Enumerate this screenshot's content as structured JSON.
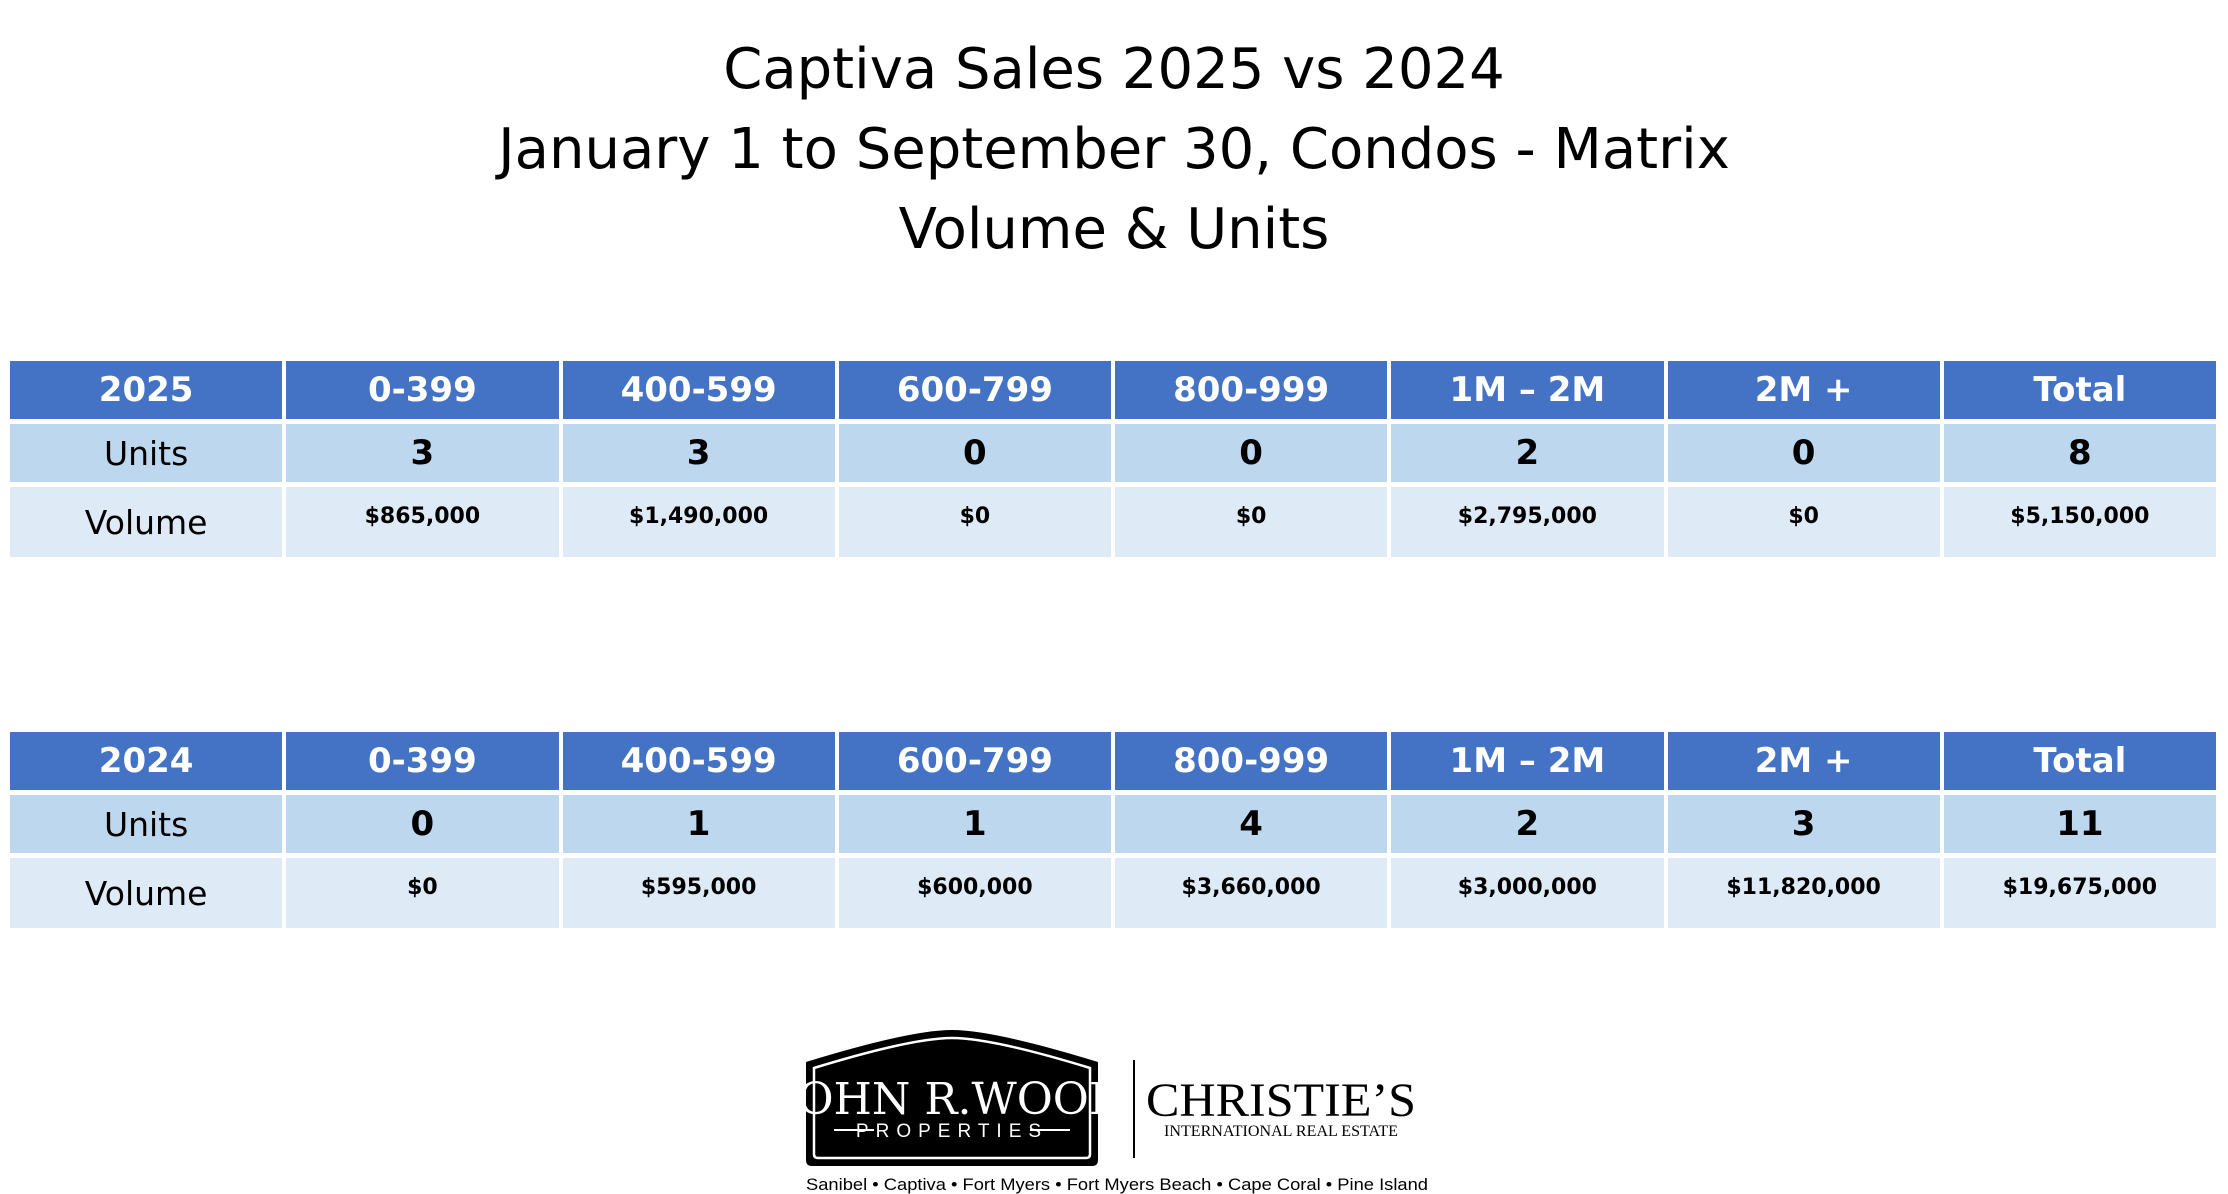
{
  "title": {
    "line1": "Captiva Sales  2025 vs 2024",
    "line2": "January 1 to September 30, Condos - Matrix",
    "line3": "Volume & Units"
  },
  "columns": [
    "0-399",
    "400-599",
    "600-799",
    "800-999",
    "1M – 2M",
    "2M +",
    "Total"
  ],
  "row_labels": {
    "units": "Units",
    "volume": "Volume"
  },
  "tables": [
    {
      "year": "2025",
      "units": [
        "3",
        "3",
        "0",
        "0",
        "2",
        "0",
        "8"
      ],
      "volume": [
        "$865,000",
        "$1,490,000",
        "$0",
        "$0",
        "$2,795,000",
        "$0",
        "$5,150,000"
      ]
    },
    {
      "year": "2024",
      "units": [
        "0",
        "1",
        "1",
        "4",
        "2",
        "3",
        "11"
      ],
      "volume": [
        "$0",
        "$595,000",
        "$600,000",
        "$3,660,000",
        "$3,000,000",
        "$11,820,000",
        "$19,675,000"
      ]
    }
  ],
  "footer": {
    "logo_name": "JOHN R.WOOD",
    "logo_sub": "PROPERTIES",
    "partner_name": "CHRISTIE’S",
    "partner_sub": "INTERNATIONAL REAL ESTATE",
    "locations": "Sanibel • Captiva • Fort Myers • Fort Myers Beach • Cape Coral • Pine Island"
  },
  "colors": {
    "header_bg": "#4472c4",
    "units_bg": "#bdd7ee",
    "volume_bg": "#deebf7"
  }
}
